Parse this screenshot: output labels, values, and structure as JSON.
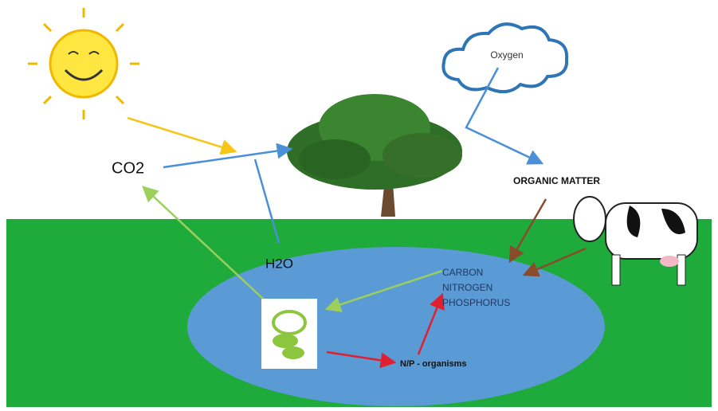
{
  "labels": {
    "co2": "CO2",
    "h2o": "H2O",
    "oxygen": "Oxygen",
    "organic_matter": "ORGANIC MATTER",
    "nutrients": [
      "CARBON",
      "NITROGEN",
      "PHOSPHORUS"
    ],
    "organisms": "N/P - organisms"
  }
}
